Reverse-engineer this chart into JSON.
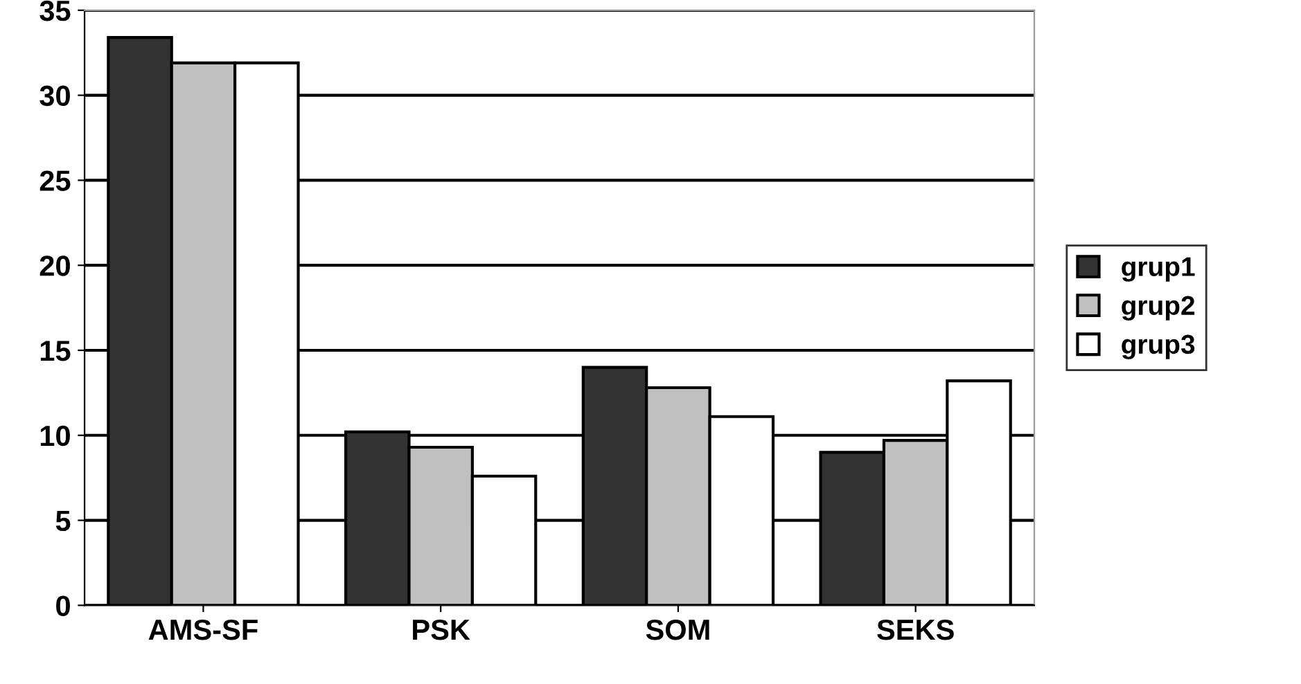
{
  "chart_data": {
    "type": "bar",
    "categories": [
      "AMS-SF",
      "PSK",
      "SOM",
      "SEKS"
    ],
    "series": [
      {
        "name": "grup1",
        "color": "#333333",
        "values": [
          33.4,
          10.2,
          14.0,
          9.0
        ]
      },
      {
        "name": "grup2",
        "color": "#c0c0c0",
        "values": [
          31.9,
          9.3,
          12.8,
          9.7
        ]
      },
      {
        "name": "grup3",
        "color": "#ffffff",
        "values": [
          31.9,
          7.6,
          11.1,
          13.2
        ]
      }
    ],
    "ylim": [
      0,
      35
    ],
    "yticks": [
      0,
      5,
      10,
      15,
      20,
      25,
      30,
      35
    ],
    "grid": "y",
    "legend": "right"
  }
}
